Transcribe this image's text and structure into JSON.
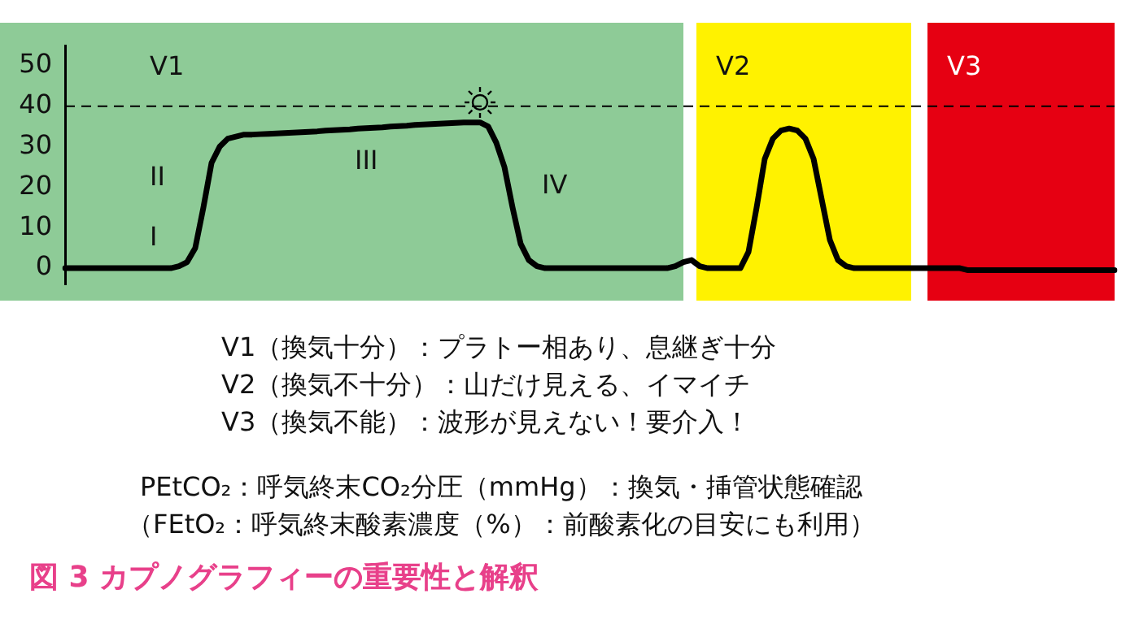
{
  "chart_data": {
    "type": "line",
    "title": "図 3 カプノグラフィーの重要性と解釈",
    "categories": [
      null,
      null,
      null,
      null,
      null,
      null,
      null,
      null,
      null,
      null,
      null,
      null,
      null,
      null,
      null,
      null,
      null,
      null,
      null,
      null,
      null,
      null,
      null,
      null,
      null,
      null,
      null,
      null,
      null,
      null,
      null,
      null,
      null,
      null,
      null,
      null,
      null,
      null,
      null,
      null,
      null,
      null,
      null,
      null,
      null,
      null,
      null,
      null,
      null,
      null,
      null,
      null,
      null,
      null,
      null,
      null,
      null,
      null,
      null,
      null,
      null,
      null,
      null,
      null,
      null,
      null,
      null,
      null,
      null,
      null,
      null,
      null,
      null,
      null,
      null,
      null,
      null,
      null,
      null,
      null,
      null,
      null,
      null,
      null,
      null,
      null,
      null,
      null,
      null,
      null,
      null,
      null,
      null,
      null,
      null,
      null,
      null,
      null,
      null,
      null,
      null,
      null,
      null,
      null,
      null,
      null,
      null,
      null,
      null,
      null,
      null,
      null,
      null,
      null,
      null,
      null,
      null,
      null,
      null,
      null,
      null,
      null,
      null,
      null,
      null,
      null,
      null,
      null,
      null,
      null
    ],
    "series": [
      {
        "color": "#000000",
        "values": [
          0,
          0,
          0,
          0,
          0,
          0,
          0,
          0,
          0,
          0,
          0,
          0,
          0,
          0,
          0.5,
          1.5,
          5,
          15,
          26,
          30,
          32,
          32.5,
          33,
          33,
          33.1,
          33.2,
          33.3,
          33.4,
          33.5,
          33.6,
          33.7,
          33.8,
          34,
          34.1,
          34.2,
          34.3,
          34.5,
          34.6,
          34.7,
          34.8,
          35,
          35.1,
          35.2,
          35.4,
          35.5,
          35.6,
          35.7,
          35.8,
          35.9,
          36,
          36,
          36,
          35,
          31,
          25,
          15,
          6,
          2,
          0.5,
          0,
          0,
          0,
          0,
          0,
          0,
          0,
          0,
          0,
          0,
          0,
          0,
          0,
          0,
          0,
          0,
          0.5,
          1.5,
          2,
          0.5,
          0,
          0,
          0,
          0,
          0,
          4,
          15,
          27,
          32,
          34,
          34.5,
          34,
          32,
          27,
          17,
          7,
          2,
          0.5,
          0,
          0,
          0,
          0,
          0,
          0,
          0,
          0,
          0,
          0,
          0,
          0,
          0,
          0,
          -0.5,
          -0.5,
          -0.5,
          -0.5,
          -0.5,
          -0.5,
          -0.5,
          -0.5,
          -0.5,
          -0.5,
          -0.5,
          -0.5,
          -0.5,
          -0.5,
          -0.5,
          -0.5,
          -0.5,
          -0.5,
          -0.5
        ]
      }
    ],
    "ylim": [
      -4,
      55
    ],
    "yticks": [
      0,
      10,
      20,
      30,
      40,
      50
    ],
    "grid": false,
    "legend": false,
    "marker": "none",
    "line_style": "solid",
    "tick_labels": "y",
    "ref_lines": [
      {
        "axis": "y",
        "value": 40,
        "color": "#000000",
        "line_style": "dashed"
      }
    ],
    "annotations": [
      "V1",
      "V2",
      "V3",
      "I",
      "II",
      "III",
      "IV",
      "V1（換気十分）：プラトー相あり、息継ぎ十分",
      "V2（換気不十分）：山だけ見える、イマイチ",
      "V3（換気不能）：波形が見えない！要介入！",
      "PEtCO₂：呼気終末CO₂分圧（mmHg）：換気・挿管状態確認",
      "（FEtO₂：呼気終末酸素濃度（%）：前酸素化の目安にも利用）"
    ]
  }
}
